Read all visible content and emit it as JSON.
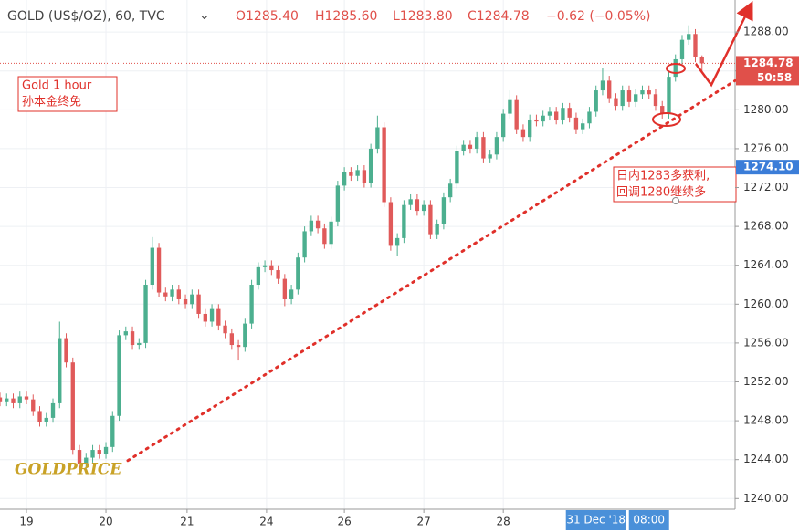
{
  "chart_data": {
    "type": "candlestick",
    "title": "GOLD (US$/OZ), 60, TVC",
    "legend_values": [
      "O1285.40",
      "H1285.60",
      "L1283.80",
      "C1284.78",
      "−0.62 (−0.05%)"
    ],
    "annotations": [
      "Gold 1 hour",
      "孙本金终免",
      "日内1283多获利,",
      "回调1280继续多"
    ],
    "logo": "GOLDPRICE",
    "countdown": "50:58",
    "up_color": "#4caf8f",
    "down_color": "#e05a5a",
    "grid": true,
    "xlim": [
      0,
      222
    ],
    "ylim": [
      1238.9,
      1291.3
    ],
    "yticks": [
      {
        "value": 1240,
        "label": "1240.00"
      },
      {
        "value": 1244,
        "label": "1244.00"
      },
      {
        "value": 1248,
        "label": "1248.00"
      },
      {
        "value": 1252,
        "label": "1252.00"
      },
      {
        "value": 1256,
        "label": "1256.00"
      },
      {
        "value": 1260,
        "label": "1260.00"
      },
      {
        "value": 1264,
        "label": "1264.00"
      },
      {
        "value": 1268,
        "label": "1268.00"
      },
      {
        "value": 1272,
        "label": "1272.00"
      },
      {
        "value": 1276,
        "label": "1276.00"
      },
      {
        "value": 1280,
        "label": "1280.00"
      },
      {
        "value": 1284,
        "label": "1284.00"
      },
      {
        "value": 1288,
        "label": "1288.00"
      }
    ],
    "xticks": [
      {
        "value": 8,
        "label": "19"
      },
      {
        "value": 32,
        "label": "20"
      },
      {
        "value": 56.5,
        "label": "21"
      },
      {
        "value": 80.5,
        "label": "24"
      },
      {
        "value": 104,
        "label": "26"
      },
      {
        "value": 128,
        "label": "27"
      },
      {
        "value": 152,
        "label": "28"
      }
    ],
    "crosshair_labels": [
      {
        "value": 180,
        "label": "31 Dec '18"
      },
      {
        "value": 196,
        "label": "08:00"
      }
    ],
    "price_tags": [
      {
        "value": 1284.78,
        "label": "1284.78",
        "color": "#e0504a"
      },
      {
        "value": 1274.1,
        "label": "1274.10",
        "color": "#3b7dd8"
      }
    ],
    "trendline": {
      "x": [
        38.6,
        222
      ],
      "y": [
        1243.9,
        1283.0
      ],
      "color": "#e0302a"
    },
    "x": [
      0,
      2,
      4,
      6,
      8,
      10,
      12,
      14,
      16,
      18,
      20,
      22,
      24,
      26,
      28,
      30,
      32,
      34,
      36,
      38,
      40,
      42,
      44,
      46,
      48,
      50,
      52,
      54,
      56,
      58,
      60,
      62,
      64,
      66,
      68,
      70,
      72,
      74,
      76,
      78,
      80,
      82,
      84,
      86,
      88,
      90,
      92,
      94,
      96,
      98,
      100,
      102,
      104,
      106,
      108,
      110,
      112,
      114,
      116,
      118,
      120,
      122,
      124,
      126,
      128,
      130,
      132,
      134,
      136,
      138,
      140,
      142,
      144,
      146,
      148,
      150,
      152,
      154,
      156,
      158,
      160,
      162,
      164,
      166,
      168,
      170,
      172,
      174,
      176,
      178,
      180,
      182,
      184,
      186,
      188,
      190,
      192,
      194,
      196,
      198,
      200,
      202,
      204,
      206,
      208,
      210,
      212
    ],
    "open": [
      1250.4,
      1250.0,
      1250.3,
      1249.8,
      1250.5,
      1250.2,
      1249.0,
      1247.9,
      1248.3,
      1249.8,
      1256.5,
      1254.0,
      1245.0,
      1243.5,
      1244.2,
      1245.0,
      1244.6,
      1245.3,
      1248.5,
      1256.8,
      1257.2,
      1255.8,
      1256.0,
      1262.0,
      1265.8,
      1261.2,
      1260.8,
      1261.5,
      1260.5,
      1260.0,
      1261.0,
      1259.0,
      1258.2,
      1259.5,
      1257.8,
      1257.0,
      1255.8,
      1255.6,
      1258.0,
      1262.0,
      1263.8,
      1264.0,
      1263.5,
      1262.6,
      1260.5,
      1261.5,
      1264.8,
      1267.5,
      1268.6,
      1267.8,
      1266.2,
      1268.5,
      1272.2,
      1273.6,
      1273.2,
      1273.8,
      1272.5,
      1276.0,
      1278.2,
      1270.5,
      1266.0,
      1266.8,
      1270.2,
      1270.8,
      1269.6,
      1270.2,
      1267.2,
      1268.2,
      1271.0,
      1272.4,
      1275.8,
      1276.4,
      1276.0,
      1277.2,
      1275.0,
      1275.4,
      1277.2,
      1279.6,
      1281.0,
      1278.0,
      1277.2,
      1279.0,
      1278.8,
      1279.4,
      1279.8,
      1279.0,
      1280.2,
      1279.2,
      1278.0,
      1278.6,
      1279.8,
      1282.0,
      1283.0,
      1281.2,
      1280.4,
      1282.0,
      1280.8,
      1281.6,
      1282.0,
      1281.6,
      1280.4,
      1279.6,
      1283.4,
      1285.2,
      1287.2,
      1287.8,
      1285.4
    ],
    "high": [
      1250.9,
      1250.8,
      1250.8,
      1251.0,
      1251.0,
      1250.7,
      1249.5,
      1248.8,
      1250.3,
      1258.2,
      1257.0,
      1254.5,
      1245.5,
      1244.7,
      1245.5,
      1245.5,
      1245.8,
      1249.0,
      1257.3,
      1257.7,
      1257.7,
      1256.5,
      1262.5,
      1266.9,
      1266.3,
      1261.7,
      1262.0,
      1262.0,
      1261.0,
      1261.5,
      1261.5,
      1259.5,
      1260.0,
      1260.0,
      1258.3,
      1257.5,
      1256.3,
      1258.5,
      1262.5,
      1264.3,
      1264.5,
      1264.5,
      1264.0,
      1263.1,
      1262.0,
      1265.3,
      1268.0,
      1269.1,
      1269.1,
      1268.3,
      1269.0,
      1272.7,
      1274.1,
      1274.1,
      1274.3,
      1274.3,
      1276.5,
      1279.4,
      1278.7,
      1271.0,
      1267.3,
      1270.7,
      1271.3,
      1271.3,
      1270.7,
      1270.7,
      1268.7,
      1271.5,
      1272.9,
      1276.3,
      1276.9,
      1276.9,
      1277.7,
      1277.7,
      1275.9,
      1277.7,
      1280.1,
      1282.0,
      1281.5,
      1278.5,
      1279.5,
      1279.5,
      1279.9,
      1280.3,
      1280.3,
      1280.7,
      1280.7,
      1279.7,
      1279.1,
      1280.3,
      1282.5,
      1284.3,
      1283.5,
      1281.7,
      1282.5,
      1282.5,
      1282.1,
      1282.5,
      1282.5,
      1282.1,
      1280.9,
      1283.9,
      1285.7,
      1287.7,
      1288.7,
      1288.3,
      1285.6
    ],
    "low": [
      1249.5,
      1249.5,
      1249.3,
      1249.3,
      1249.7,
      1248.5,
      1247.4,
      1247.4,
      1247.8,
      1249.3,
      1253.5,
      1244.5,
      1242.5,
      1243.0,
      1243.7,
      1244.1,
      1244.1,
      1244.8,
      1248.0,
      1256.3,
      1255.3,
      1255.3,
      1255.5,
      1261.5,
      1260.7,
      1260.3,
      1260.3,
      1260.0,
      1259.5,
      1259.5,
      1258.5,
      1257.7,
      1257.7,
      1257.3,
      1256.5,
      1255.3,
      1254.2,
      1255.1,
      1257.5,
      1261.5,
      1263.3,
      1263.0,
      1262.1,
      1259.8,
      1260.0,
      1261.0,
      1264.3,
      1267.0,
      1267.3,
      1265.7,
      1265.7,
      1268.0,
      1271.7,
      1272.7,
      1272.7,
      1272.0,
      1272.0,
      1275.5,
      1270.0,
      1265.5,
      1265.0,
      1266.3,
      1269.7,
      1269.1,
      1269.1,
      1266.7,
      1266.7,
      1267.7,
      1270.5,
      1271.9,
      1275.3,
      1275.5,
      1275.5,
      1274.5,
      1274.5,
      1274.9,
      1276.7,
      1279.1,
      1277.5,
      1276.7,
      1276.7,
      1278.3,
      1278.3,
      1278.9,
      1278.5,
      1278.5,
      1278.7,
      1277.5,
      1277.5,
      1278.1,
      1279.3,
      1281.5,
      1280.7,
      1279.9,
      1279.9,
      1280.3,
      1280.3,
      1281.1,
      1281.1,
      1279.9,
      1279.1,
      1279.1,
      1282.9,
      1284.7,
      1286.7,
      1284.9,
      1283.8
    ],
    "close": [
      1250.0,
      1250.3,
      1249.8,
      1250.5,
      1250.2,
      1249.0,
      1247.9,
      1248.3,
      1249.8,
      1256.5,
      1254.0,
      1245.0,
      1243.5,
      1244.2,
      1245.0,
      1244.6,
      1245.3,
      1248.5,
      1256.8,
      1257.2,
      1255.8,
      1256.0,
      1262.0,
      1265.8,
      1261.2,
      1260.8,
      1261.5,
      1260.5,
      1260.0,
      1261.0,
      1259.0,
      1258.2,
      1259.5,
      1257.8,
      1257.0,
      1255.8,
      1255.6,
      1258.0,
      1262.0,
      1263.8,
      1264.0,
      1263.5,
      1262.6,
      1260.5,
      1261.5,
      1264.8,
      1267.5,
      1268.6,
      1267.8,
      1266.2,
      1268.5,
      1272.2,
      1273.6,
      1273.2,
      1273.8,
      1272.5,
      1276.0,
      1278.2,
      1270.5,
      1266.0,
      1266.8,
      1270.2,
      1270.8,
      1269.6,
      1270.2,
      1267.2,
      1268.2,
      1271.0,
      1272.4,
      1275.8,
      1276.4,
      1276.0,
      1277.2,
      1275.0,
      1275.4,
      1277.2,
      1279.6,
      1281.0,
      1278.0,
      1277.2,
      1279.0,
      1278.8,
      1279.4,
      1279.8,
      1279.0,
      1280.2,
      1279.2,
      1278.0,
      1278.6,
      1279.8,
      1282.0,
      1283.0,
      1281.2,
      1280.4,
      1282.0,
      1280.8,
      1281.6,
      1282.0,
      1281.6,
      1280.4,
      1279.6,
      1283.4,
      1285.2,
      1287.2,
      1287.8,
      1285.4,
      1284.78
    ]
  }
}
